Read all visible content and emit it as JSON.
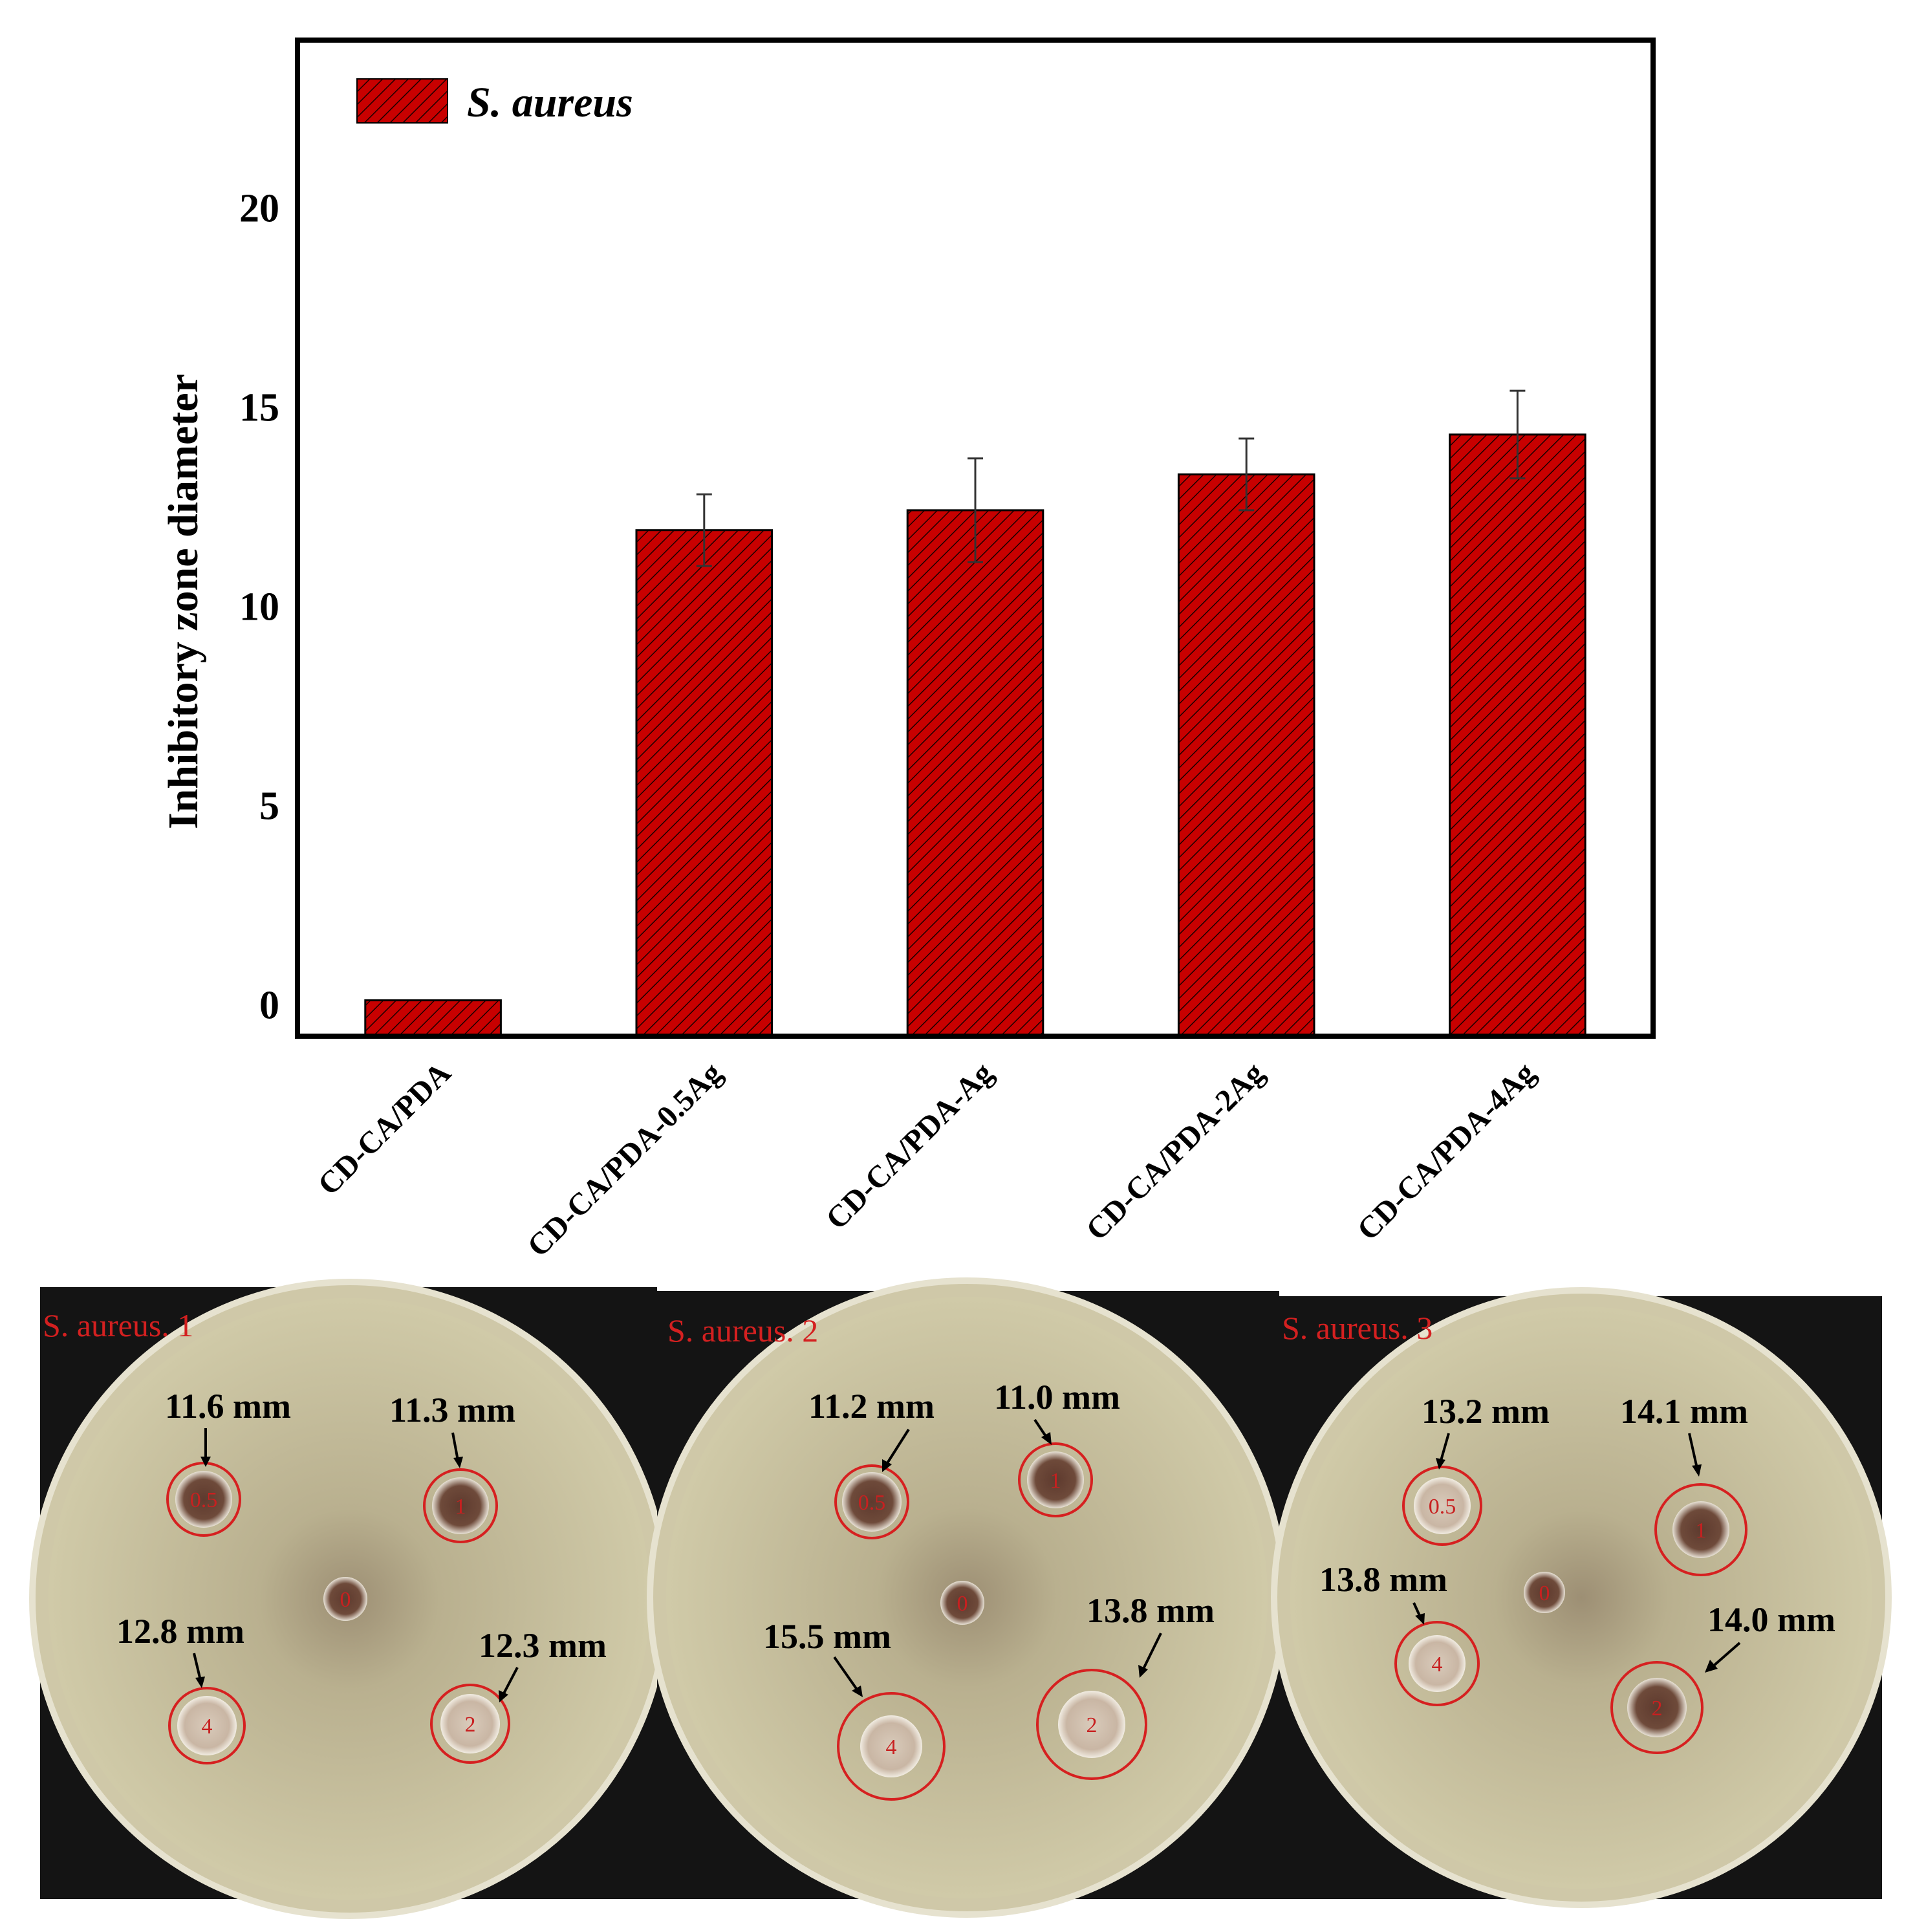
{
  "chart_data": {
    "type": "bar",
    "categories": [
      "CD-CA/PDA",
      "CD-CA/PDA-0.5Ag",
      "CD-CA/PDA-Ag",
      "CD-CA/PDA-2Ag",
      "CD-CA/PDA-4Ag"
    ],
    "series": [
      {
        "name": "S. aureus",
        "values": [
          0.1,
          11.9,
          12.4,
          13.3,
          14.3
        ],
        "errors": [
          0.0,
          0.9,
          1.3,
          0.9,
          1.1
        ]
      }
    ],
    "xlabel": "",
    "ylabel": "Inhibitory zone diameter",
    "ylim": [
      -0.8,
      24.2
    ],
    "yticks": [
      0,
      5,
      10,
      15,
      20
    ],
    "grid": false,
    "legend": "top-left",
    "bar_color": "#c80000",
    "bar_hatch_color": "#1a0000"
  },
  "photos": {
    "plates": [
      {
        "title": "S. aureus. 1",
        "zones": [
          {
            "label": "11.6 mm",
            "disk": "0.5"
          },
          {
            "label": "11.3 mm",
            "disk": "1"
          },
          {
            "label": "12.8 mm",
            "disk": "4"
          },
          {
            "label": "12.3 mm",
            "disk": "2"
          }
        ],
        "center_disk": "0"
      },
      {
        "title": "S. aureus. 2",
        "zones": [
          {
            "label": "11.2 mm",
            "disk": "0.5"
          },
          {
            "label": "11.0 mm",
            "disk": "1"
          },
          {
            "label": "15.5 mm",
            "disk": "4"
          },
          {
            "label": "13.8 mm",
            "disk": "2"
          }
        ],
        "center_disk": "0"
      },
      {
        "title": "S. aureus. 3",
        "zones": [
          {
            "label": "13.2 mm",
            "disk": "0.5"
          },
          {
            "label": "14.1 mm",
            "disk": "1"
          },
          {
            "label": "13.8 mm",
            "disk": "4"
          },
          {
            "label": "14.0 mm",
            "disk": "2"
          }
        ],
        "center_disk": "0"
      }
    ]
  }
}
